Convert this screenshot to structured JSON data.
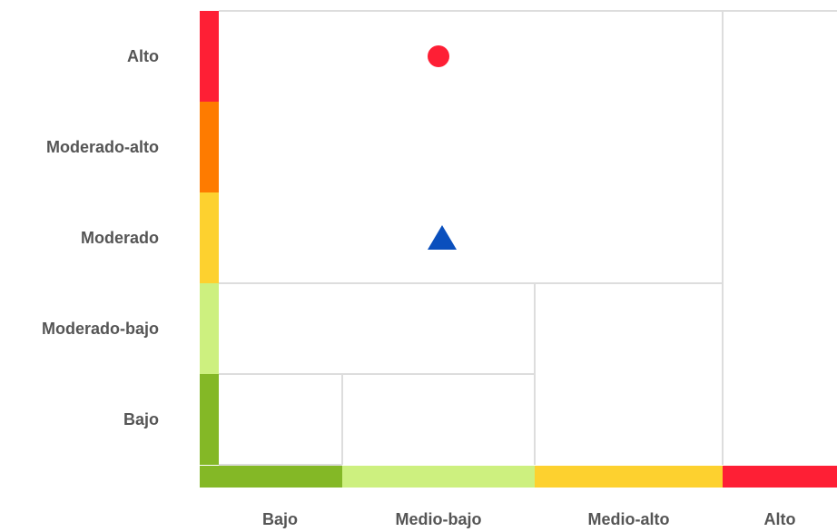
{
  "chart_data": {
    "type": "scatter",
    "title": "",
    "xlabel": "",
    "ylabel": "",
    "x_categories": [
      "Bajo",
      "Medio-bajo",
      "Medio-alto",
      "Alto"
    ],
    "y_categories": [
      "Bajo",
      "Moderado-bajo",
      "Moderado",
      "Moderado-alto",
      "Alto"
    ],
    "x_colors": [
      "#84b826",
      "#cdf07f",
      "#fdd12f",
      "#fe1f35"
    ],
    "y_colors": [
      "#84b826",
      "#cdf07f",
      "#fdd12f",
      "#fe7b00",
      "#fe1f35"
    ],
    "points": [
      {
        "marker": "circle",
        "color": "#fe1f35",
        "x": "Medio-bajo",
        "y": "Alto"
      },
      {
        "marker": "triangle",
        "color": "#0a4fbd",
        "x": "Medio-bajo",
        "y": "Moderado"
      }
    ],
    "legend": "none",
    "grid": true
  }
}
